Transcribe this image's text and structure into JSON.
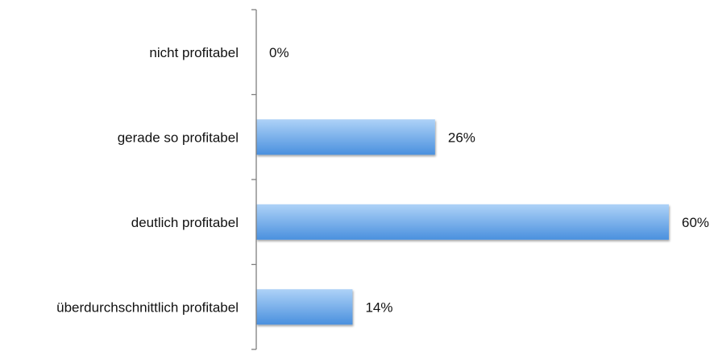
{
  "chart_data": {
    "type": "bar",
    "orientation": "horizontal",
    "categories": [
      "nicht profitabel",
      "gerade so profitabel",
      "deutlich profitabel",
      "überdurchschnittlich profitabel"
    ],
    "values": [
      0,
      26,
      60,
      14
    ],
    "value_labels": [
      "0%",
      "26%",
      "60%",
      "14%"
    ],
    "unit": "%",
    "xlim": [
      0,
      60
    ],
    "grid": false,
    "legend": "none",
    "colors": {
      "bar_top": "#aed2f7",
      "bar_bottom": "#4a90de",
      "axis": "#7f7f7f"
    }
  }
}
